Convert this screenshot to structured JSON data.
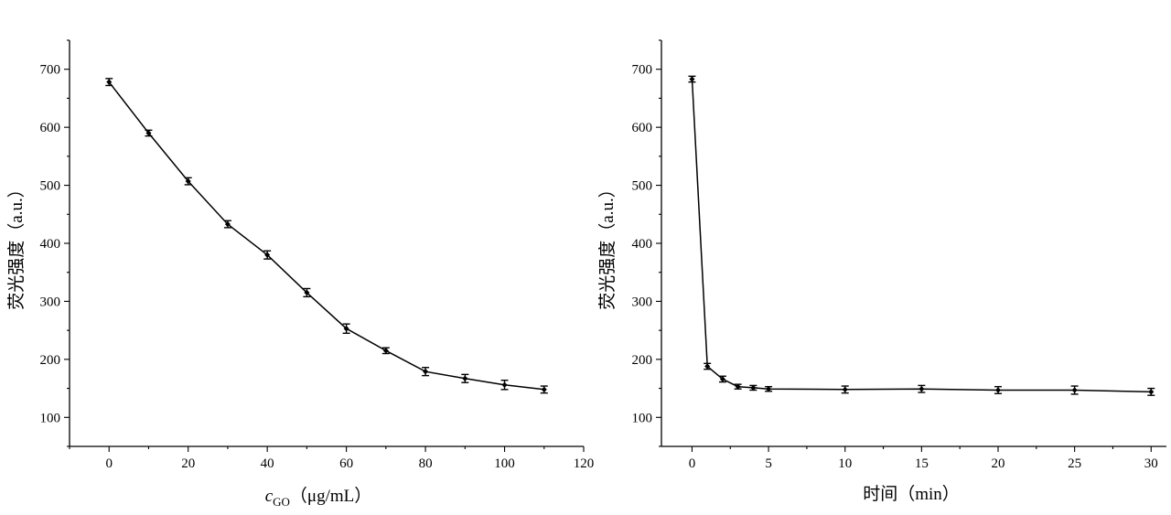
{
  "chart_data": [
    {
      "type": "line",
      "xlabel": "cGO（μg/mL）",
      "xlabel_var": "c",
      "xlabel_sub": "GO",
      "xlabel_unit": "（μg/mL）",
      "ylabel": "荧光强度（a.u.）",
      "xlim": [
        -10,
        120
      ],
      "ylim": [
        50,
        750
      ],
      "xticks": [
        "0",
        "20",
        "40",
        "60",
        "80",
        "100",
        "120"
      ],
      "yticks": [
        "100",
        "200",
        "300",
        "400",
        "500",
        "600",
        "700"
      ],
      "series": [
        {
          "x": [
            0,
            10,
            20,
            30,
            40,
            50,
            60,
            70,
            80,
            90,
            100,
            110
          ],
          "y": [
            678,
            590,
            507,
            433,
            380,
            315,
            253,
            215,
            179,
            167,
            156,
            148
          ],
          "error": [
            6,
            5,
            6,
            6,
            7,
            7,
            8,
            5,
            7,
            7,
            8,
            6
          ]
        }
      ]
    },
    {
      "type": "line",
      "xlabel": "时间（min）",
      "ylabel": "荧光强度（a.u.）",
      "xlim": [
        -2,
        31
      ],
      "ylim": [
        50,
        750
      ],
      "xticks": [
        "0",
        "5",
        "10",
        "15",
        "20",
        "25",
        "30"
      ],
      "yticks": [
        "100",
        "200",
        "300",
        "400",
        "500",
        "600",
        "700"
      ],
      "series": [
        {
          "x": [
            0,
            1,
            2,
            3,
            4,
            5,
            10,
            15,
            20,
            25,
            30
          ],
          "y": [
            683,
            188,
            166,
            153,
            151,
            149,
            148,
            149,
            147,
            147,
            144
          ],
          "error": [
            5,
            5,
            5,
            4,
            4,
            4,
            6,
            6,
            6,
            7,
            6
          ]
        }
      ]
    }
  ]
}
